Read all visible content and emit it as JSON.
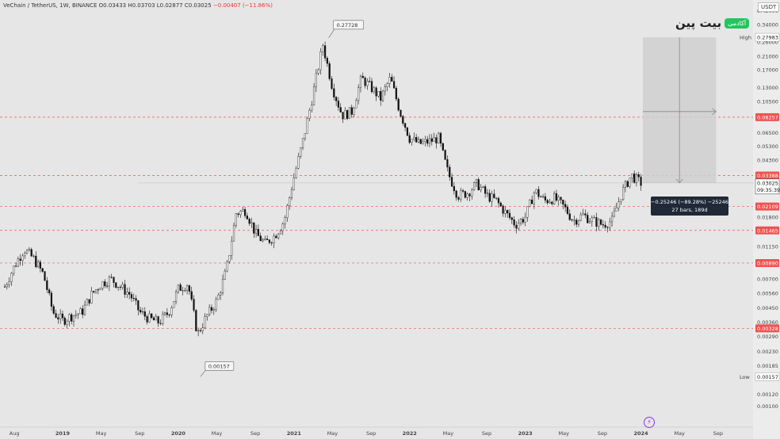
{
  "header": {
    "symbol": "VeChain / TetherUS, 1W, BINANCE",
    "ohlc": "O0.03433 H0.03703 L0.02877 C0.03025",
    "change": "−0.00407 (−11.86%)"
  },
  "logo": {
    "text": "بیت پین",
    "badge": "آکادمی"
  },
  "currency": "USDT",
  "chart_data": {
    "type": "candlestick",
    "y_scale": "log",
    "ylim": [
      0.0008,
      0.46
    ],
    "y_ticks": [
      "0.42000",
      "0.34000",
      "0.26000",
      "0.21000",
      "0.17000",
      "0.13000",
      "0.10500",
      "0.08257",
      "0.06500",
      "0.05300",
      "0.04300",
      "0.03388",
      "0.03025",
      "0.02109",
      "0.01800",
      "0.01465",
      "0.01150",
      "0.00890",
      "0.00700",
      "0.00560",
      "0.00450",
      "0.00360",
      "0.00328",
      "0.00290",
      "0.00230",
      "0.00185",
      "0.00157",
      "0.00120",
      "0.00100"
    ],
    "x_ticks": [
      "Aug",
      "2019",
      "May",
      "Sep",
      "2020",
      "May",
      "Sep",
      "2021",
      "May",
      "Sep",
      "2022",
      "May",
      "Sep",
      "2023",
      "May",
      "Sep",
      "2024",
      "May",
      "Sep"
    ],
    "horizontal_levels": [
      0.08257,
      0.03388,
      0.02109,
      0.01465,
      0.0089,
      0.00328
    ],
    "price_flags": [
      {
        "label": "High",
        "value": "0.27983"
      },
      {
        "label": "Low",
        "value": "0.00157"
      }
    ],
    "current_price": "0.03025",
    "countdown": "09:35:39",
    "annotations": [
      {
        "text": "0.27728",
        "value": 0.27728
      },
      {
        "text": "0.00157",
        "value": 0.00157
      }
    ],
    "measurement": {
      "line1": "−0.25246 (−89.28%) −25246",
      "line2": "27 bars, 189d"
    },
    "close_path": [
      [
        "2018-07",
        0.0062
      ],
      [
        "2018-08",
        0.0085
      ],
      [
        "2018-09",
        0.011
      ],
      [
        "2018-10",
        0.0095
      ],
      [
        "2018-11",
        0.0075
      ],
      [
        "2018-12",
        0.0042
      ],
      [
        "2019-01",
        0.0037
      ],
      [
        "2019-02",
        0.004
      ],
      [
        "2019-03",
        0.0042
      ],
      [
        "2019-04",
        0.0055
      ],
      [
        "2019-05",
        0.0065
      ],
      [
        "2019-06",
        0.007
      ],
      [
        "2019-07",
        0.0062
      ],
      [
        "2019-08",
        0.0055
      ],
      [
        "2019-09",
        0.0042
      ],
      [
        "2019-10",
        0.0038
      ],
      [
        "2019-11",
        0.0036
      ],
      [
        "2019-12",
        0.0042
      ],
      [
        "2020-01",
        0.006
      ],
      [
        "2020-02",
        0.0065
      ],
      [
        "2020-03",
        0.003
      ],
      [
        "2020-04",
        0.004
      ],
      [
        "2020-05",
        0.005
      ],
      [
        "2020-06",
        0.008
      ],
      [
        "2020-07",
        0.019
      ],
      [
        "2020-08",
        0.02
      ],
      [
        "2020-09",
        0.014
      ],
      [
        "2020-10",
        0.012
      ],
      [
        "2020-11",
        0.0135
      ],
      [
        "2020-12",
        0.017
      ],
      [
        "2021-01",
        0.033
      ],
      [
        "2021-02",
        0.06
      ],
      [
        "2021-03",
        0.12
      ],
      [
        "2021-04",
        0.25
      ],
      [
        "2021-05",
        0.13
      ],
      [
        "2021-06",
        0.085
      ],
      [
        "2021-07",
        0.09
      ],
      [
        "2021-08",
        0.15
      ],
      [
        "2021-09",
        0.13
      ],
      [
        "2021-10",
        0.11
      ],
      [
        "2021-11",
        0.15
      ],
      [
        "2021-12",
        0.09
      ],
      [
        "2022-01",
        0.06
      ],
      [
        "2022-02",
        0.055
      ],
      [
        "2022-03",
        0.057
      ],
      [
        "2022-04",
        0.06
      ],
      [
        "2022-05",
        0.035
      ],
      [
        "2022-06",
        0.025
      ],
      [
        "2022-07",
        0.026
      ],
      [
        "2022-08",
        0.03
      ],
      [
        "2022-09",
        0.025
      ],
      [
        "2022-10",
        0.023
      ],
      [
        "2022-11",
        0.019
      ],
      [
        "2022-12",
        0.016
      ],
      [
        "2023-01",
        0.018
      ],
      [
        "2023-02",
        0.027
      ],
      [
        "2023-03",
        0.023
      ],
      [
        "2023-04",
        0.024
      ],
      [
        "2023-05",
        0.021
      ],
      [
        "2023-06",
        0.017
      ],
      [
        "2023-07",
        0.0185
      ],
      [
        "2023-08",
        0.017
      ],
      [
        "2023-09",
        0.016
      ],
      [
        "2023-10",
        0.017
      ],
      [
        "2023-11",
        0.026
      ],
      [
        "2023-12",
        0.034
      ],
      [
        "2024-01",
        0.0303
      ]
    ]
  }
}
